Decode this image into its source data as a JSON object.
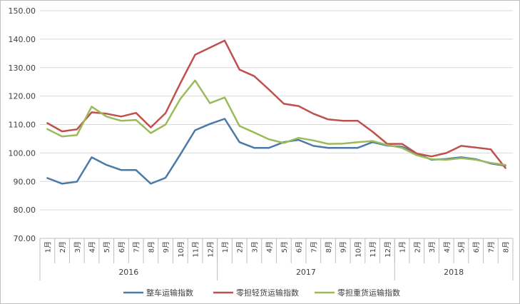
{
  "chart_data": {
    "type": "line",
    "title": "",
    "xlabel": "",
    "ylabel": "",
    "ylim": [
      70,
      150
    ],
    "ytick_step": 10,
    "grid": "horizontal",
    "legend_position": "bottom",
    "y_tick_labels": [
      "70.00",
      "80.00",
      "90.00",
      "100.00",
      "110.00",
      "120.00",
      "130.00",
      "140.00",
      "150.00"
    ],
    "categories": [
      "1月",
      "2月",
      "3月",
      "4月",
      "5月",
      "6月",
      "7月",
      "8月",
      "9月",
      "10月",
      "11月",
      "12月",
      "1月",
      "2月",
      "3月",
      "4月",
      "5月",
      "6月",
      "7月",
      "8月",
      "9月",
      "10月",
      "11月",
      "12月",
      "1月",
      "2月",
      "3月",
      "4月",
      "5月",
      "6月",
      "7月",
      "8月"
    ],
    "year_groups": [
      {
        "label": "2016",
        "count": 12
      },
      {
        "label": "2017",
        "count": 12
      },
      {
        "label": "2018",
        "count": 8
      }
    ],
    "series": [
      {
        "name": "整车运输指数",
        "color": "#4a7aa7",
        "values": [
          91.2,
          89.2,
          89.9,
          98.5,
          95.8,
          94.0,
          94.0,
          89.2,
          91.3,
          99.5,
          108.0,
          110.2,
          112.0,
          103.8,
          101.8,
          101.8,
          103.8,
          104.6,
          102.5,
          101.8,
          101.8,
          101.8,
          103.8,
          102.6,
          102.2,
          99.8,
          97.6,
          97.9,
          98.5,
          97.8,
          96.3,
          95.5
        ]
      },
      {
        "name": "零担轻货运输指数",
        "color": "#c0504d",
        "values": [
          110.5,
          107.6,
          108.3,
          114.3,
          113.8,
          112.8,
          114.1,
          109.0,
          114.0,
          124.5,
          134.5,
          137.0,
          139.5,
          129.3,
          127.0,
          122.3,
          117.3,
          116.5,
          113.8,
          111.8,
          111.3,
          111.3,
          107.5,
          103.2,
          103.2,
          99.8,
          98.8,
          100.0,
          102.5,
          101.9,
          101.3,
          94.7
        ]
      },
      {
        "name": "零担重货运输指数",
        "color": "#9bbb59",
        "values": [
          108.4,
          105.8,
          106.3,
          116.3,
          112.8,
          111.3,
          111.6,
          107.0,
          110.0,
          119.0,
          125.5,
          117.5,
          119.5,
          109.5,
          107.2,
          104.8,
          103.5,
          105.3,
          104.4,
          103.2,
          103.3,
          103.8,
          104.2,
          102.8,
          101.8,
          99.2,
          97.8,
          97.6,
          98.2,
          97.6,
          96.5,
          95.8
        ]
      }
    ]
  }
}
